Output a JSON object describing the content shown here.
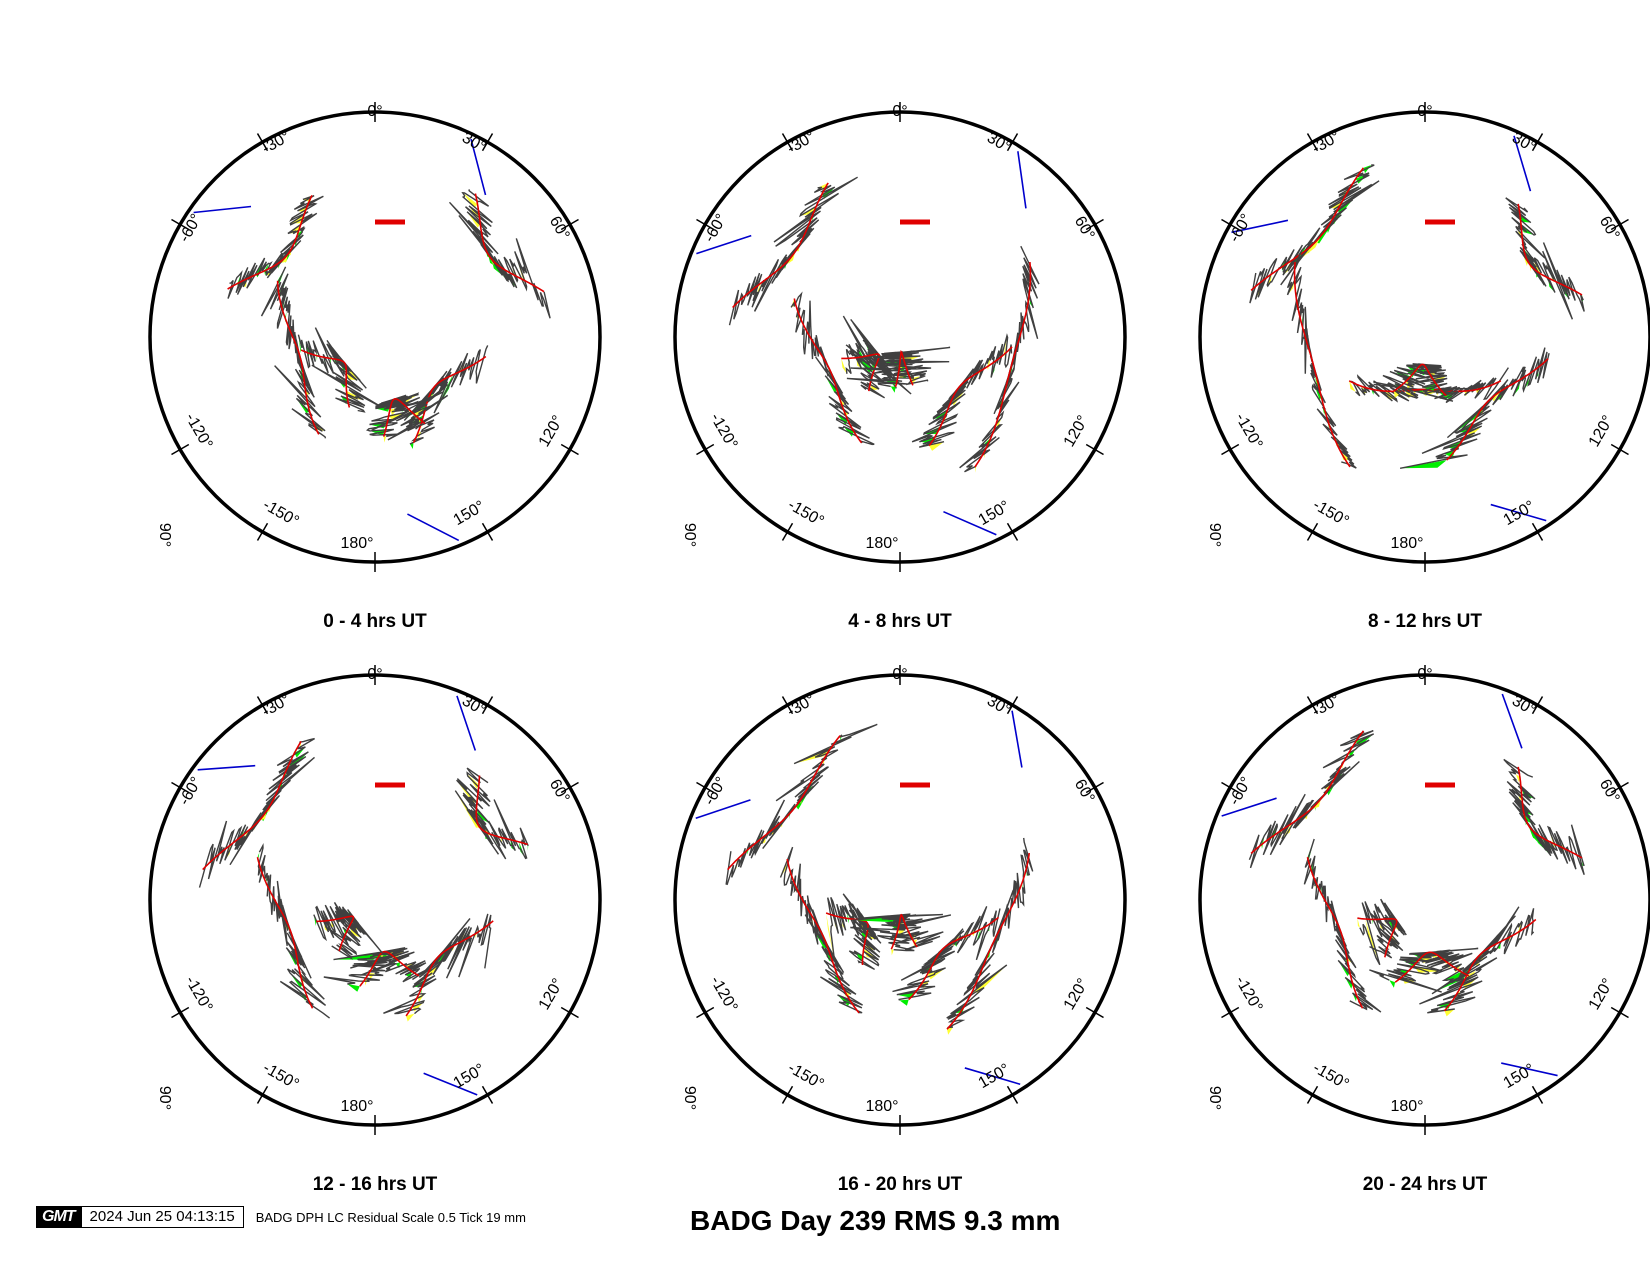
{
  "title": "BADG Day 239 RMS 9.3 mm",
  "footer": {
    "logo": "GMT",
    "timestamp": "2024 Jun 25 04:13:15",
    "caption": "BADG DPH LC Residual Scale 0.5 Tick 19 mm"
  },
  "colors": {
    "outline": "#000000",
    "track": "#e00000",
    "scale_bar": "#e00000",
    "residual_line": "#404040",
    "positive_fill": "#00ee00",
    "negative_fill": "#ffff33",
    "low_track": "#0000cc"
  },
  "chart_data": {
    "type": "polar-skyplot",
    "radial_axis": "elevation",
    "elevation_range": [
      0,
      90
    ],
    "azimuth_tick_labels": [
      "0°",
      "30°",
      "60°",
      "120°",
      "150°",
      "180°",
      "-150°",
      "-120°",
      "-60°",
      "-30°"
    ],
    "radial_tick_label": "90°",
    "panels": [
      {
        "title": "0 - 4 hrs UT",
        "tracks": [
          {
            "az_start": -72,
            "az_end": -24,
            "elev": 28
          },
          {
            "az_start": -150,
            "az_end": -60,
            "elev": 45
          },
          {
            "az_start": -160,
            "az_end": -100,
            "elev": 60
          },
          {
            "az_start": 100,
            "az_end": 160,
            "elev": 45
          },
          {
            "az_start": 35,
            "az_end": 75,
            "elev": 20
          },
          {
            "az_start": 150,
            "az_end": 175,
            "elev": 50
          }
        ]
      },
      {
        "title": "4 - 8 hrs UT",
        "tracks": [
          {
            "az_start": -80,
            "az_end": -25,
            "elev": 22
          },
          {
            "az_start": -160,
            "az_end": -70,
            "elev": 45
          },
          {
            "az_start": 95,
            "az_end": 165,
            "elev": 45
          },
          {
            "az_start": 60,
            "az_end": 150,
            "elev": 30
          },
          {
            "az_start": -150,
            "az_end": -110,
            "elev": 65
          },
          {
            "az_start": 165,
            "az_end": 185,
            "elev": 70
          }
        ]
      },
      {
        "title": "8 - 12 hrs UT",
        "tracks": [
          {
            "az_start": -75,
            "az_end": -20,
            "elev": 18
          },
          {
            "az_start": -150,
            "az_end": -60,
            "elev": 30
          },
          {
            "az_start": 100,
            "az_end": 170,
            "elev": 40
          },
          {
            "az_start": 120,
            "az_end": 240,
            "elev": 55
          },
          {
            "az_start": 35,
            "az_end": 75,
            "elev": 25
          },
          {
            "az_start": 160,
            "az_end": 210,
            "elev": 65
          }
        ]
      },
      {
        "title": "12 - 16 hrs UT",
        "tracks": [
          {
            "az_start": -80,
            "az_end": -25,
            "elev": 20
          },
          {
            "az_start": -150,
            "az_end": -70,
            "elev": 40
          },
          {
            "az_start": 100,
            "az_end": 165,
            "elev": 42
          },
          {
            "az_start": 40,
            "az_end": 70,
            "elev": 25
          },
          {
            "az_start": 150,
            "az_end": 190,
            "elev": 55
          },
          {
            "az_start": -145,
            "az_end": -110,
            "elev": 65
          }
        ]
      },
      {
        "title": "16 - 20 hrs UT",
        "tracks": [
          {
            "az_start": -80,
            "az_end": -20,
            "elev": 20
          },
          {
            "az_start": -160,
            "az_end": -70,
            "elev": 42
          },
          {
            "az_start": 70,
            "az_end": 160,
            "elev": 35
          },
          {
            "az_start": 100,
            "az_end": 175,
            "elev": 50
          },
          {
            "az_start": -150,
            "az_end": -100,
            "elev": 60
          },
          {
            "az_start": 160,
            "az_end": 190,
            "elev": 70
          }
        ]
      },
      {
        "title": "20 - 24 hrs UT",
        "tracks": [
          {
            "az_start": -75,
            "az_end": -20,
            "elev": 18
          },
          {
            "az_start": -150,
            "az_end": -70,
            "elev": 40
          },
          {
            "az_start": 100,
            "az_end": 170,
            "elev": 45
          },
          {
            "az_start": 35,
            "az_end": 75,
            "elev": 25
          },
          {
            "az_start": 150,
            "az_end": 200,
            "elev": 55
          },
          {
            "az_start": -145,
            "az_end": -105,
            "elev": 62
          }
        ]
      }
    ]
  }
}
